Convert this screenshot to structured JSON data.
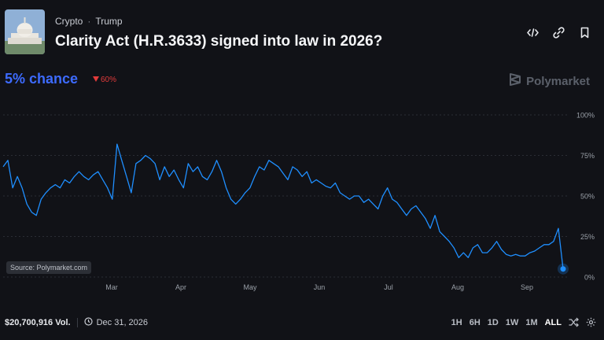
{
  "header": {
    "breadcrumb": [
      "Crypto",
      "Trump"
    ],
    "breadcrumb_separator": "·",
    "title": "Clarity Act (H.R.3633) signed into law in 2026?",
    "icons": [
      "embed-icon",
      "link-icon",
      "bookmark-icon"
    ]
  },
  "summary": {
    "chance_text": "5% chance",
    "change_text": "60%",
    "change_direction": "down",
    "accent_color": "#3d6bff",
    "down_color": "#e23b3b"
  },
  "brand": {
    "name": "Polymarket"
  },
  "source_label": "Source: Polymarket.com",
  "footer": {
    "volume": "$20,700,916 Vol.",
    "end_date": "Dec 31, 2026",
    "ranges": [
      "1H",
      "6H",
      "1D",
      "1W",
      "1M",
      "ALL"
    ],
    "active_range": "ALL"
  },
  "chart_data": {
    "type": "line",
    "x_ticks": [
      "Mar",
      "Apr",
      "May",
      "Jun",
      "Jul",
      "Aug",
      "Sep"
    ],
    "y_ticks": [
      "100%",
      "75%",
      "50%",
      "25%",
      "0%"
    ],
    "ylim": [
      0,
      100
    ],
    "grid": true,
    "line_color": "#1f8fff",
    "series": [
      {
        "values": [
          68,
          72,
          55,
          62,
          55,
          45,
          40,
          38,
          48,
          52,
          55,
          57,
          55,
          60,
          58,
          62,
          65,
          62,
          60,
          63,
          65,
          60,
          55,
          48,
          82,
          72,
          62,
          52,
          70,
          72,
          75,
          73,
          70,
          60,
          68,
          62,
          66,
          60,
          55,
          70,
          65,
          68,
          62,
          60,
          65,
          72,
          65,
          55,
          48,
          45,
          48,
          52,
          55,
          62,
          68,
          66,
          72,
          70,
          68,
          64,
          60,
          68,
          66,
          62,
          65,
          58,
          60,
          58,
          56,
          55,
          58,
          52,
          50,
          48,
          50,
          50,
          46,
          48,
          45,
          42,
          50,
          55,
          48,
          46,
          42,
          38,
          42,
          44,
          40,
          36,
          30,
          38,
          28,
          25,
          22,
          18,
          12,
          15,
          12,
          18,
          20,
          15,
          15,
          18,
          22,
          17,
          14,
          13,
          14,
          13,
          13,
          15,
          16,
          18,
          20,
          20,
          22,
          30,
          5
        ]
      }
    ]
  }
}
